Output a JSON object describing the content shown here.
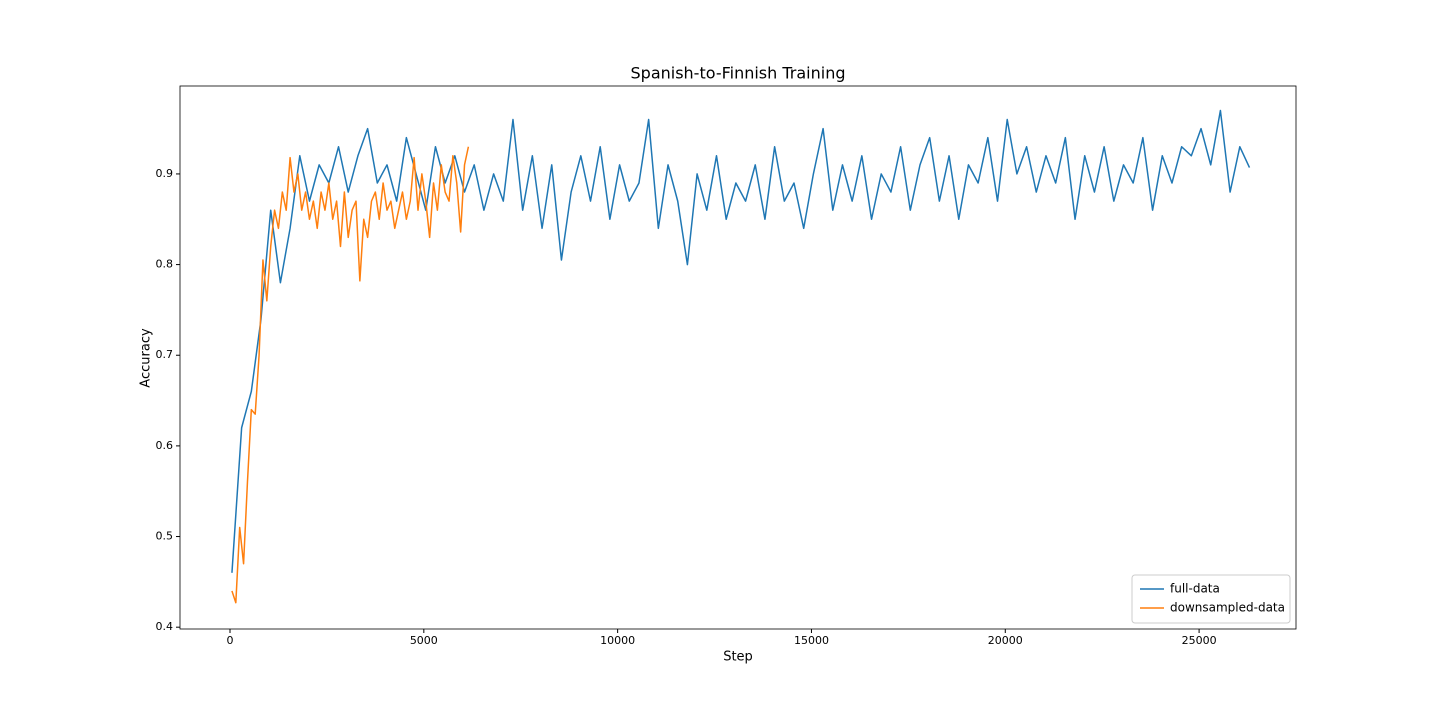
{
  "chart_data": {
    "type": "line",
    "title": "Spanish-to-Finnish Training",
    "x_label": "Step",
    "y_label": "Accuracy",
    "xlim": [
      -1290,
      27500
    ],
    "ylim": [
      0.398,
      0.997
    ],
    "xticks": [
      0,
      5000,
      10000,
      15000,
      20000,
      25000
    ],
    "yticks": [
      0.4,
      0.5,
      0.6,
      0.7,
      0.8,
      0.9
    ],
    "legend": "lower right",
    "series": [
      {
        "name": "full-data",
        "color": "#1f77b4",
        "x": [
          50,
          300,
          550,
          800,
          1050,
          1300,
          1550,
          1800,
          2050,
          2300,
          2550,
          2800,
          3050,
          3300,
          3550,
          3800,
          4050,
          4300,
          4550,
          4800,
          5050,
          5300,
          5550,
          5800,
          6050,
          6300,
          6550,
          6800,
          7050,
          7300,
          7550,
          7800,
          8050,
          8300,
          8550,
          8800,
          9050,
          9300,
          9550,
          9800,
          10050,
          10300,
          10550,
          10800,
          11050,
          11300,
          11550,
          11800,
          12050,
          12300,
          12550,
          12800,
          13050,
          13300,
          13550,
          13800,
          14050,
          14300,
          14550,
          14800,
          15050,
          15300,
          15550,
          15800,
          16050,
          16300,
          16550,
          16800,
          17050,
          17300,
          17550,
          17800,
          18050,
          18300,
          18550,
          18800,
          19050,
          19300,
          19550,
          19800,
          20050,
          20300,
          20550,
          20800,
          21050,
          21300,
          21550,
          21800,
          22050,
          22300,
          22550,
          22800,
          23050,
          23300,
          23550,
          23800,
          24050,
          24300,
          24550,
          24800,
          25050,
          25300,
          25550,
          25800,
          26050,
          26300
        ],
        "values": [
          0.46,
          0.62,
          0.66,
          0.74,
          0.86,
          0.78,
          0.84,
          0.92,
          0.87,
          0.91,
          0.89,
          0.93,
          0.88,
          0.92,
          0.95,
          0.89,
          0.91,
          0.87,
          0.94,
          0.9,
          0.86,
          0.93,
          0.89,
          0.92,
          0.88,
          0.91,
          0.86,
          0.9,
          0.87,
          0.96,
          0.86,
          0.92,
          0.84,
          0.91,
          0.805,
          0.88,
          0.92,
          0.87,
          0.93,
          0.85,
          0.91,
          0.87,
          0.89,
          0.96,
          0.84,
          0.91,
          0.87,
          0.8,
          0.9,
          0.86,
          0.92,
          0.85,
          0.89,
          0.87,
          0.91,
          0.85,
          0.93,
          0.87,
          0.89,
          0.84,
          0.9,
          0.95,
          0.86,
          0.91,
          0.87,
          0.92,
          0.85,
          0.9,
          0.88,
          0.93,
          0.86,
          0.91,
          0.94,
          0.87,
          0.92,
          0.85,
          0.91,
          0.89,
          0.94,
          0.87,
          0.96,
          0.9,
          0.93,
          0.88,
          0.92,
          0.89,
          0.94,
          0.85,
          0.92,
          0.88,
          0.93,
          0.87,
          0.91,
          0.89,
          0.94,
          0.86,
          0.92,
          0.89,
          0.93,
          0.92,
          0.95,
          0.91,
          0.97,
          0.88,
          0.93,
          0.907
        ]
      },
      {
        "name": "downsampled-data",
        "color": "#ff7f0e",
        "x": [
          50,
          150,
          250,
          350,
          450,
          550,
          650,
          750,
          850,
          950,
          1050,
          1150,
          1250,
          1350,
          1450,
          1550,
          1650,
          1750,
          1850,
          1950,
          2050,
          2150,
          2250,
          2350,
          2450,
          2550,
          2650,
          2750,
          2850,
          2950,
          3050,
          3150,
          3250,
          3350,
          3450,
          3550,
          3650,
          3750,
          3850,
          3950,
          4050,
          4150,
          4250,
          4350,
          4450,
          4550,
          4650,
          4750,
          4850,
          4950,
          5050,
          5150,
          5250,
          5350,
          5450,
          5550,
          5650,
          5750,
          5850,
          5950,
          6050,
          6150
        ],
        "values": [
          0.44,
          0.427,
          0.51,
          0.47,
          0.56,
          0.64,
          0.635,
          0.7,
          0.805,
          0.76,
          0.82,
          0.86,
          0.84,
          0.88,
          0.86,
          0.918,
          0.88,
          0.9,
          0.86,
          0.88,
          0.85,
          0.87,
          0.84,
          0.88,
          0.86,
          0.89,
          0.85,
          0.87,
          0.82,
          0.88,
          0.83,
          0.86,
          0.87,
          0.782,
          0.85,
          0.83,
          0.87,
          0.88,
          0.85,
          0.89,
          0.86,
          0.87,
          0.84,
          0.86,
          0.88,
          0.85,
          0.87,
          0.918,
          0.86,
          0.9,
          0.87,
          0.83,
          0.89,
          0.86,
          0.91,
          0.88,
          0.87,
          0.92,
          0.89,
          0.836,
          0.91,
          0.93
        ]
      }
    ]
  }
}
